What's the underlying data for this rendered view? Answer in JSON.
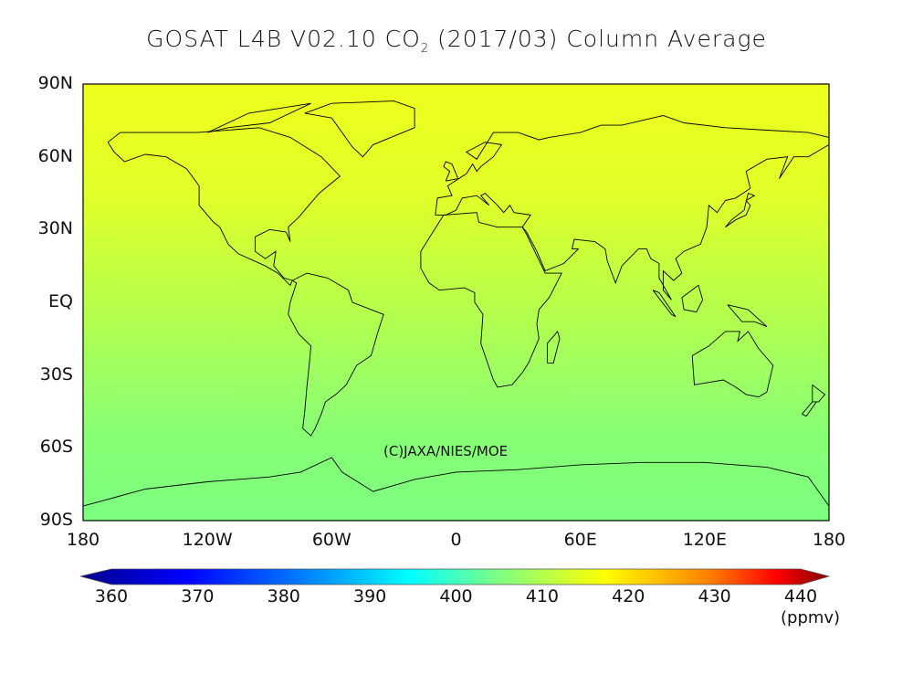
{
  "title": {
    "main": "GOSAT L4B V02.10 CO",
    "sub": "2",
    "rest": " (2017/03) Column Average"
  },
  "map": {
    "projection": "equirectangular",
    "lon_range": [
      -180,
      180
    ],
    "lat_range": [
      -90,
      90
    ],
    "lat_labels": [
      "90N",
      "60N",
      "30N",
      "EQ",
      "30S",
      "60S",
      "90S"
    ],
    "lon_labels": [
      "180",
      "120W",
      "60W",
      "0",
      "60E",
      "120E",
      "180"
    ],
    "field_by_latitude_ppmv": [
      [
        90,
        409
      ],
      [
        60,
        409
      ],
      [
        30,
        407.5
      ],
      [
        0,
        405
      ],
      [
        -30,
        402
      ],
      [
        -60,
        400.5
      ],
      [
        -90,
        400
      ]
    ],
    "copyright": "(C)JAXA/NIES/MOE"
  },
  "colorbar": {
    "ticks": [
      "360",
      "370",
      "380",
      "390",
      "400",
      "410",
      "420",
      "430",
      "440"
    ],
    "range": [
      360,
      440
    ],
    "unit": "(ppmv)",
    "colormap": "jet",
    "colors": [
      "#00008c",
      "#0000ff",
      "#0080ff",
      "#00ffff",
      "#80ff80",
      "#ffff00",
      "#ff8000",
      "#ff0000",
      "#800000"
    ]
  }
}
